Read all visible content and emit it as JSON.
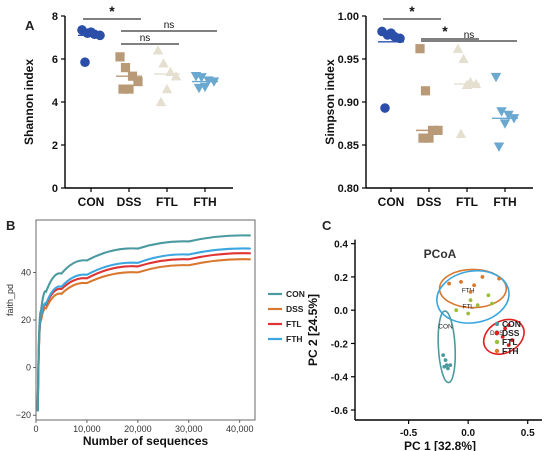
{
  "colors": {
    "CON": "#2b4fa8",
    "DSS": "#b89a78",
    "FTL": "#e4dfcf",
    "FTH": "#6aa8d0",
    "rare_CON": "#4b9aa0",
    "rare_DSS": "#d9782f",
    "rare_FTL": "#e03434",
    "rare_FTH": "#3ba6df",
    "pcoa_CON": "#4b9aa0",
    "pcoa_DSS": "#e01f1f",
    "pcoa_FTL": "#9bbf3c",
    "pcoa_FTH": "#d9782f",
    "ell_FTL_line": "#3ba6df"
  },
  "chart_data": [
    {
      "id": "shannon",
      "panel": "A",
      "type": "scatter",
      "categories": [
        "CON",
        "DSS",
        "FTL",
        "FTH"
      ],
      "ylabel": "Shannon index",
      "ylim": [
        0,
        8
      ],
      "yticks": [
        "0",
        "2",
        "4",
        "6",
        "8"
      ],
      "markers": [
        "circle",
        "square",
        "triangle",
        "triangle-down"
      ],
      "series": [
        {
          "name": "CON",
          "points": [
            7.35,
            7.2,
            7.15,
            7.1,
            7.25,
            5.85
          ],
          "mean": 7.1
        },
        {
          "name": "DSS",
          "points": [
            6.1,
            5.6,
            5.2,
            4.95,
            4.6,
            4.6
          ],
          "mean": 5.2
        },
        {
          "name": "FTL",
          "points": [
            6.4,
            5.8,
            5.4,
            5.2,
            4.6,
            4.0
          ],
          "mean": 5.3
        },
        {
          "name": "FTH",
          "points": [
            5.2,
            5.15,
            5.0,
            4.95,
            4.7,
            4.65
          ],
          "mean": 4.95
        }
      ],
      "significance": [
        {
          "from": "CON",
          "to": "DSS",
          "label": "*"
        },
        {
          "from": "DSS",
          "to": "FTL",
          "label": "ns"
        },
        {
          "from": "DSS",
          "to": "FTH",
          "label": "ns"
        }
      ]
    },
    {
      "id": "simpson",
      "panel": "",
      "type": "scatter",
      "categories": [
        "CON",
        "DSS",
        "FTL",
        "FTH"
      ],
      "ylabel": "Simpson index",
      "ylim": [
        0.8,
        1.0
      ],
      "yticks": [
        "0.80",
        "0.85",
        "0.90",
        "0.95",
        "1.00"
      ],
      "markers": [
        "circle",
        "square",
        "triangle",
        "triangle-down"
      ],
      "series": [
        {
          "name": "CON",
          "points": [
            0.982,
            0.978,
            0.976,
            0.974,
            0.98,
            0.893
          ],
          "mean": 0.97
        },
        {
          "name": "DSS",
          "points": [
            0.962,
            0.913,
            0.867,
            0.867,
            0.858,
            0.858
          ],
          "mean": 0.867
        },
        {
          "name": "FTL",
          "points": [
            0.962,
            0.95,
            0.923,
            0.921,
            0.92,
            0.863
          ],
          "mean": 0.921
        },
        {
          "name": "FTH",
          "points": [
            0.929,
            0.889,
            0.885,
            0.881,
            0.875,
            0.848
          ],
          "mean": 0.881
        }
      ],
      "significance": [
        {
          "from": "CON",
          "to": "DSS",
          "label": "*"
        },
        {
          "from": "DSS",
          "to": "FTL",
          "label": "*"
        },
        {
          "from": "DSS",
          "to": "FTH",
          "label": "ns"
        }
      ]
    },
    {
      "id": "rarefaction",
      "panel": "B",
      "type": "line",
      "xlabel": "Number of sequences",
      "ylabel": "faith_pd",
      "xlim": [
        0,
        43000
      ],
      "ylim": [
        -22,
        62
      ],
      "xticks": [
        0,
        10000,
        20000,
        30000,
        40000
      ],
      "xtick_labels": [
        "0",
        "10,000",
        "20,000",
        "30,000",
        "40,000"
      ],
      "yticks": [
        -20,
        0,
        20,
        40
      ],
      "ytick_labels": [
        "−20",
        "0",
        "20",
        "40"
      ],
      "grid": false,
      "legend": "right",
      "x_start": 350,
      "start_value": -18,
      "series": [
        {
          "name": "CON",
          "x": [
            1000,
            2000,
            5000,
            10000,
            20000,
            30000,
            42000
          ],
          "values": [
            24,
            32,
            39.5,
            45,
            50,
            53,
            55.5
          ]
        },
        {
          "name": "DSS",
          "x": [
            1000,
            2000,
            5000,
            10000,
            20000,
            30000,
            42000
          ],
          "values": [
            20,
            25,
            31,
            35.5,
            40,
            43,
            45.5
          ]
        },
        {
          "name": "FTL",
          "x": [
            1000,
            2000,
            5000,
            10000,
            20000,
            30000,
            42000
          ],
          "values": [
            21,
            26.5,
            33,
            37.5,
            42.5,
            45.5,
            48
          ]
        },
        {
          "name": "FTH",
          "x": [
            1000,
            2000,
            5000,
            10000,
            20000,
            30000,
            42000
          ],
          "values": [
            21.5,
            27,
            34,
            39,
            44,
            47.5,
            50
          ]
        }
      ]
    },
    {
      "id": "pcoa",
      "panel": "C",
      "type": "scatter",
      "title": "PCoA",
      "xlabel": "PC 1    [32.8%]",
      "ylabel": "PC 2    [24.5%]",
      "xlim": [
        -0.95,
        0.62
      ],
      "ylim": [
        -0.66,
        0.47
      ],
      "xticks": [
        -0.5,
        0.0,
        0.5
      ],
      "xtick_labels": [
        "-0.5",
        "0.0",
        "0.5"
      ],
      "yticks": [
        -0.6,
        -0.4,
        -0.2,
        0.0,
        0.2,
        0.4
      ],
      "ytick_labels": [
        "-0.6",
        "-0.4",
        "-0.2",
        "0.0",
        "0.2",
        "0.4"
      ],
      "legend": "right",
      "series": [
        {
          "name": "CON",
          "x": [
            -0.21,
            -0.19,
            -0.18,
            -0.2,
            -0.17,
            -0.15
          ],
          "y": [
            -0.27,
            -0.3,
            -0.33,
            -0.34,
            -0.35,
            -0.33
          ]
        },
        {
          "name": "DSS",
          "x": [
            0.24,
            0.29,
            0.31,
            0.34,
            0.34,
            0.37
          ],
          "y": [
            -0.14,
            -0.16,
            -0.11,
            -0.09,
            -0.21,
            -0.18
          ]
        },
        {
          "name": "FTL",
          "x": [
            -0.1,
            0.0,
            0.08,
            0.2,
            0.17,
            0.02
          ],
          "y": [
            0.0,
            -0.02,
            0.03,
            0.04,
            0.09,
            0.06
          ]
        },
        {
          "name": "FTH",
          "x": [
            -0.16,
            -0.06,
            0.05,
            0.12,
            0.26,
            0.02
          ],
          "y": [
            0.16,
            0.17,
            0.15,
            0.2,
            0.19,
            0.11
          ]
        }
      ],
      "ellipses": [
        {
          "name": "CON",
          "label": "CON",
          "cx": -0.18,
          "cy": -0.22,
          "rx": 0.07,
          "ry": 0.215,
          "rot": -3,
          "color_key": "pcoa_CON"
        },
        {
          "name": "DSS",
          "label": "DSS",
          "cx": 0.3,
          "cy": -0.16,
          "rx": 0.18,
          "ry": 0.095,
          "rot": -30,
          "color_key": "pcoa_DSS"
        },
        {
          "name": "FTL",
          "label": "FTL",
          "cx": 0.04,
          "cy": 0.08,
          "rx": 0.305,
          "ry": 0.155,
          "rot": -10,
          "color_key": "ell_FTL_line"
        },
        {
          "name": "FTH",
          "label": "FTH",
          "cx": 0.04,
          "cy": 0.13,
          "rx": 0.28,
          "ry": 0.115,
          "rot": 0,
          "color_key": "pcoa_FTH"
        }
      ]
    }
  ],
  "legend_labels": {
    "rarefaction": [
      "CON",
      "DSS",
      "FTL",
      "FTH"
    ],
    "pcoa": [
      "CON",
      "DSS",
      "FTL",
      "FTH"
    ]
  }
}
